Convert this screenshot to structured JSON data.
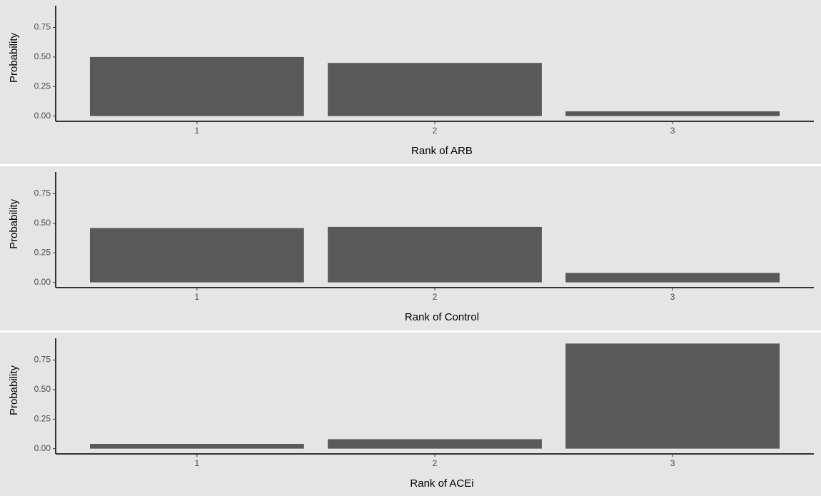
{
  "chart_data": [
    {
      "type": "bar",
      "x_label": "Rank of ARB",
      "y_label": "Probability",
      "categories": [
        "1",
        "2",
        "3"
      ],
      "values": [
        0.5,
        0.45,
        0.04
      ],
      "color": "#595959",
      "ylim": [
        -0.0445,
        0.9345
      ],
      "yticks": [
        {
          "value": 0,
          "label": "0.00"
        },
        {
          "value": 0.25,
          "label": "0.25"
        },
        {
          "value": 0.5,
          "label": "0.50"
        },
        {
          "value": 0.75,
          "label": "0.75"
        }
      ]
    },
    {
      "type": "bar",
      "x_label": "Rank of Control",
      "y_label": "Probability",
      "categories": [
        "1",
        "2",
        "3"
      ],
      "values": [
        0.46,
        0.47,
        0.08
      ],
      "color": "#595959",
      "ylim": [
        -0.0445,
        0.9345
      ],
      "yticks": [
        {
          "value": 0,
          "label": "0.00"
        },
        {
          "value": 0.25,
          "label": "0.25"
        },
        {
          "value": 0.5,
          "label": "0.50"
        },
        {
          "value": 0.75,
          "label": "0.75"
        }
      ]
    },
    {
      "type": "bar",
      "x_label": "Rank of ACEi",
      "y_label": "Probability",
      "categories": [
        "1",
        "2",
        "3"
      ],
      "values": [
        0.04,
        0.08,
        0.89
      ],
      "color": "#595959",
      "ylim": [
        -0.0445,
        0.9345
      ],
      "yticks": [
        {
          "value": 0,
          "label": "0.00"
        },
        {
          "value": 0.25,
          "label": "0.25"
        },
        {
          "value": 0.5,
          "label": "0.50"
        },
        {
          "value": 0.75,
          "label": "0.75"
        }
      ]
    }
  ]
}
